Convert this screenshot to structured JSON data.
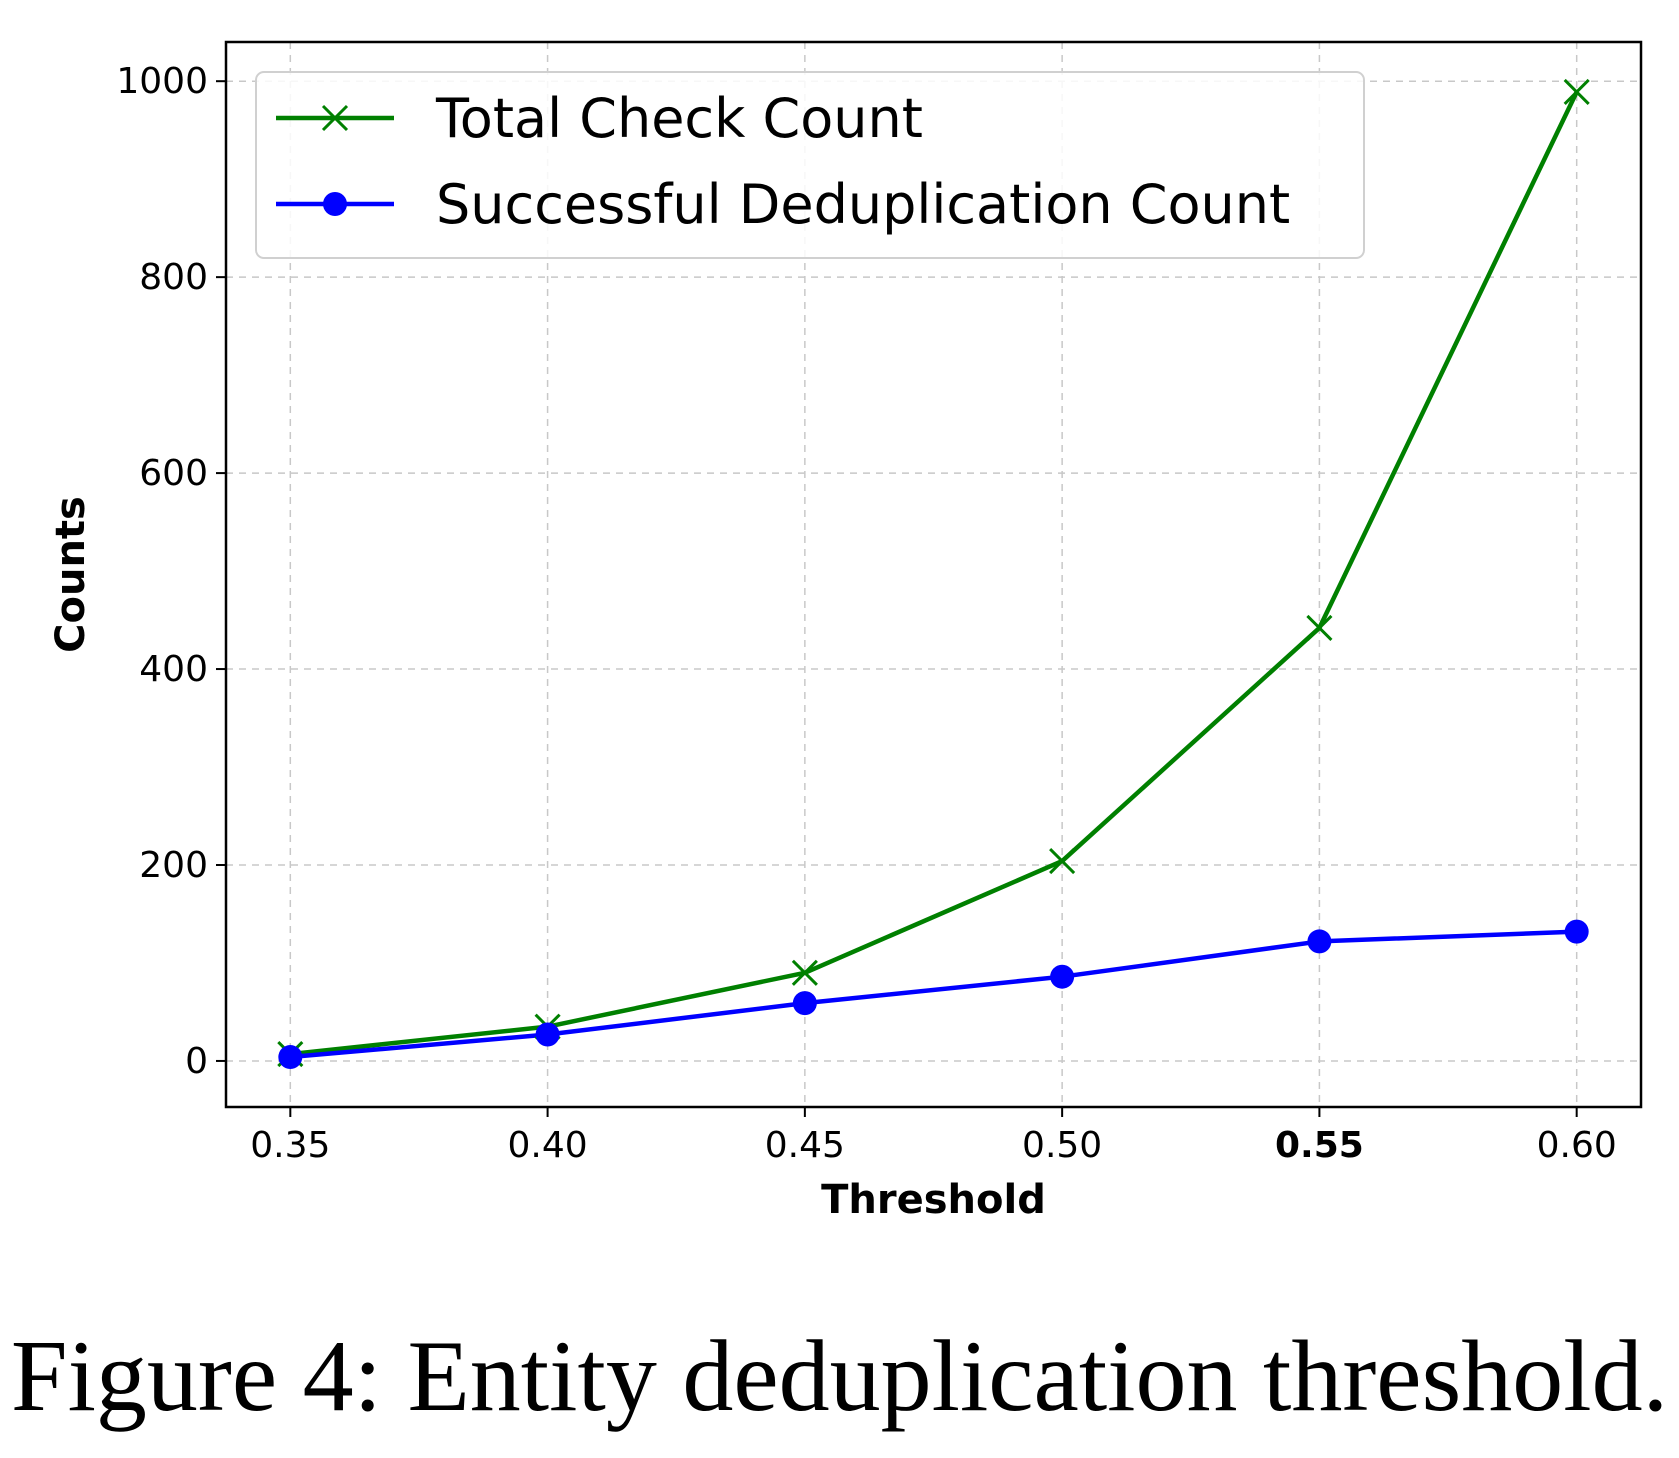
{
  "caption": "Figure 4: Entity deduplication threshold.",
  "chart_data": {
    "type": "line",
    "title": "",
    "xlabel": "Threshold",
    "ylabel": "Counts",
    "x": [
      0.35,
      0.4,
      0.45,
      0.5,
      0.55,
      0.6
    ],
    "xtick_labels": [
      "0.35",
      "0.40",
      "0.45",
      "0.50",
      "0.55",
      "0.60"
    ],
    "highlighted_xtick": "0.55",
    "highlight_color": "#ff0000",
    "ytick_labels": [
      "0",
      "200",
      "400",
      "600",
      "800",
      "1000"
    ],
    "yticks": [
      0,
      200,
      400,
      600,
      800,
      1000
    ],
    "xlim": [
      0.3375,
      0.6125
    ],
    "ylim": [
      -47,
      1040
    ],
    "grid": true,
    "legend_position": "top-left",
    "series": [
      {
        "name": "Total Check Count",
        "values": [
          7,
          35,
          90,
          204,
          442,
          989
        ],
        "color": "#008000",
        "marker": "x"
      },
      {
        "name": "Successful Deduplication Count",
        "values": [
          4,
          27,
          59,
          86,
          122,
          132
        ],
        "color": "#0000ff",
        "marker": "circle"
      }
    ]
  }
}
